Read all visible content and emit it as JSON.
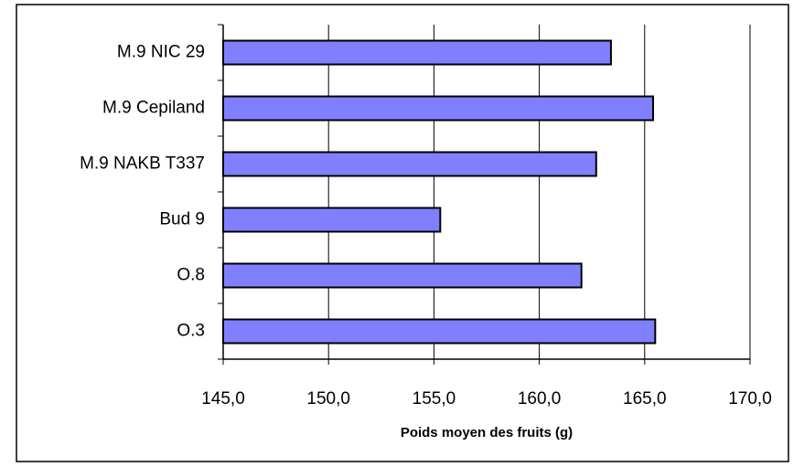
{
  "chart_data": {
    "type": "barh",
    "xlabel": "Poids moyen des fruits (g)",
    "categories": [
      "M.9 NIC 29",
      "M.9 Cepiland",
      "M.9 NAKB T337",
      "Bud 9",
      "O.8",
      "O.3"
    ],
    "values": [
      163.4,
      165.4,
      162.7,
      155.3,
      162.0,
      165.5
    ],
    "color": "#8080ff",
    "xlim": [
      145,
      170
    ],
    "xticks": [
      {
        "value": 145,
        "label": "145,0"
      },
      {
        "value": 150,
        "label": "150,0"
      },
      {
        "value": 155,
        "label": "155,0"
      },
      {
        "value": 160,
        "label": "160,0"
      },
      {
        "value": 165,
        "label": "165,0"
      },
      {
        "value": 170,
        "label": "170,0"
      }
    ],
    "grid": true
  }
}
